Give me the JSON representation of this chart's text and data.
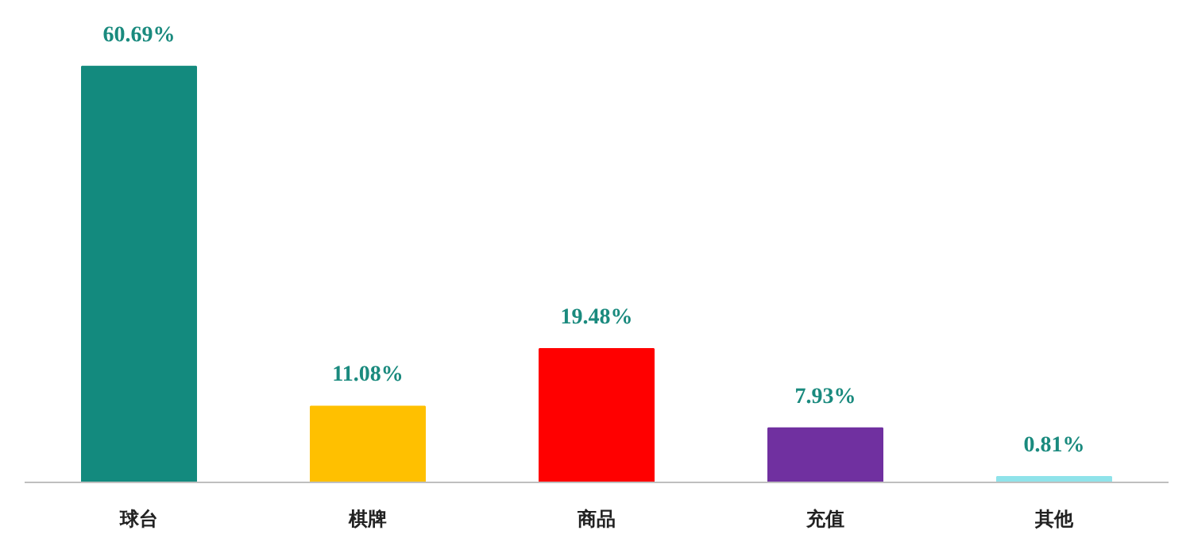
{
  "chart_data": {
    "type": "bar",
    "categories": [
      "球台",
      "棋牌",
      "商品",
      "充值",
      "其他"
    ],
    "values": [
      60.69,
      11.08,
      19.48,
      7.93,
      0.81
    ],
    "value_labels": [
      "60.69%",
      "11.08%",
      "19.48%",
      "7.93%",
      "0.81%"
    ],
    "colors": [
      "#138a7e",
      "#ffc000",
      "#ff0000",
      "#7030a0",
      "#8fe3ea"
    ],
    "grid": false
  }
}
